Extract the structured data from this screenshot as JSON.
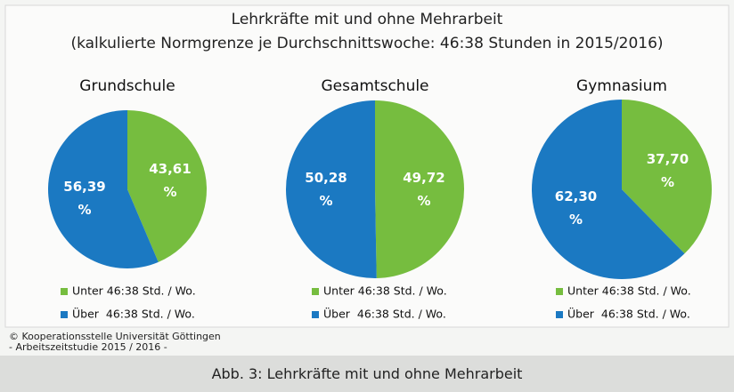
{
  "header": {
    "title": "Lehrkräfte mit und ohne Mehrarbeit",
    "subtitle": "(kalkulierte Normgrenze je Durchschnittswoche: 46:38 Stunden in 2015/2016)"
  },
  "chart_data": [
    {
      "type": "pie",
      "title": "Grundschule",
      "categories": [
        "Unter 46:38 Std. / Wo.",
        "Über  46:38 Std. / Wo."
      ],
      "values": [
        43.61,
        56.39
      ],
      "value_labels": [
        "43,61 %",
        "56,39 %"
      ],
      "colors": [
        "#76bd3f",
        "#1b79c2"
      ]
    },
    {
      "type": "pie",
      "title": "Gesamtschule",
      "categories": [
        "Unter 46:38 Std. / Wo.",
        "Über  46:38 Std. / Wo."
      ],
      "values": [
        49.72,
        50.28
      ],
      "value_labels": [
        "49,72 %",
        "50,28 %"
      ],
      "colors": [
        "#76bd3f",
        "#1b79c2"
      ]
    },
    {
      "type": "pie",
      "title": "Gymnasium",
      "categories": [
        "Unter 46:38 Std. / Wo.",
        "Über  46:38 Std. / Wo."
      ],
      "values": [
        37.7,
        62.3
      ],
      "value_labels": [
        "37,70 %",
        "62,30 %"
      ],
      "colors": [
        "#76bd3f",
        "#1b79c2"
      ]
    }
  ],
  "footer": {
    "credit": [
      "© Kooperationsstelle Universität Göttingen",
      "- Arbeitszeitstudie 2015 / 2016 -"
    ],
    "caption": "Abb. 3: Lehrkräfte mit und ohne Mehrarbeit"
  }
}
